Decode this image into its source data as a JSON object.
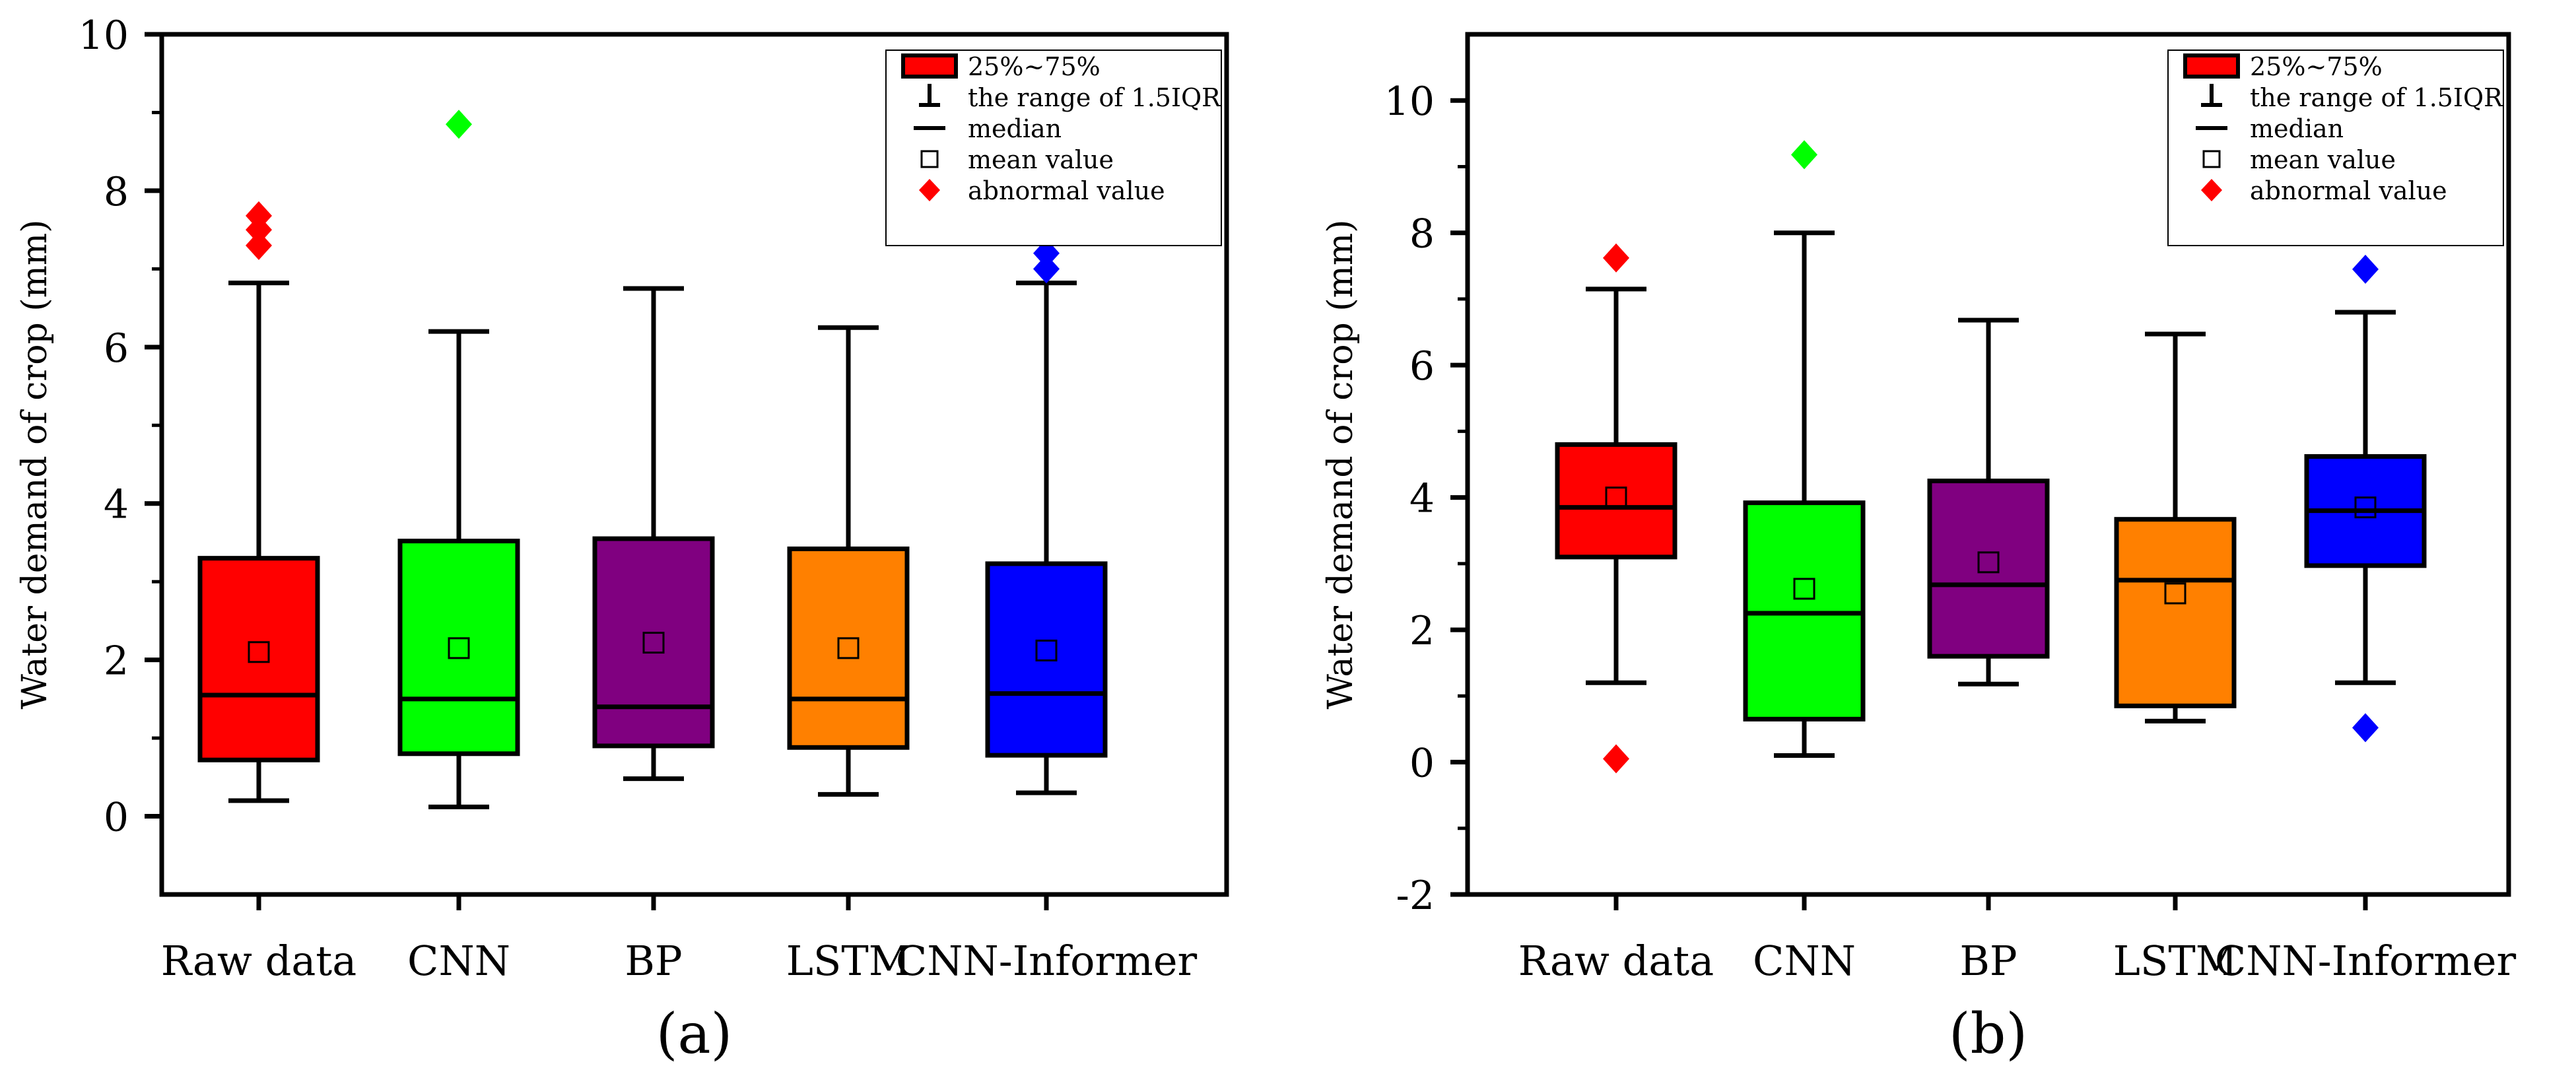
{
  "chart_data": [
    {
      "type": "box",
      "panel_label": "(a)",
      "ylabel": "Water demand of crop (mm)",
      "ylim": [
        -1,
        10
      ],
      "yticks": [
        0,
        2,
        4,
        6,
        8,
        10
      ],
      "categories": [
        "Raw data",
        "CNN",
        "BP",
        "LSTM",
        "CNN-Informer"
      ],
      "boxes": [
        {
          "name": "Raw data",
          "color": "#ff0000",
          "whisker_low": 0.2,
          "q1": 0.72,
          "median": 1.55,
          "q3": 3.3,
          "whisker_high": 6.82,
          "mean": 2.1,
          "outliers": [
            7.3,
            7.5,
            7.68
          ]
        },
        {
          "name": "CNN",
          "color": "#00ff00",
          "whisker_low": 0.12,
          "q1": 0.8,
          "median": 1.5,
          "q3": 3.52,
          "whisker_high": 6.2,
          "mean": 2.15,
          "outliers": [
            8.85
          ]
        },
        {
          "name": "BP",
          "color": "#800080",
          "whisker_low": 0.48,
          "q1": 0.9,
          "median": 1.4,
          "q3": 3.55,
          "whisker_high": 6.75,
          "mean": 2.22,
          "outliers": []
        },
        {
          "name": "LSTM",
          "color": "#ff8000",
          "whisker_low": 0.28,
          "q1": 0.88,
          "median": 1.5,
          "q3": 3.42,
          "whisker_high": 6.25,
          "mean": 2.15,
          "outliers": []
        },
        {
          "name": "CNN-Informer",
          "color": "#0000ff",
          "whisker_low": 0.3,
          "q1": 0.78,
          "median": 1.57,
          "q3": 3.23,
          "whisker_high": 6.82,
          "mean": 2.12,
          "outliers": [
            7.0,
            7.2
          ]
        }
      ],
      "legend": {
        "position": "top-right",
        "entries": [
          "25%~75%",
          "the range of 1.5IQR",
          "median",
          "mean value",
          "abnormal value"
        ]
      }
    },
    {
      "type": "box",
      "panel_label": "(b)",
      "ylabel": "Water demand of crop (mm)",
      "ylim": [
        -2,
        11
      ],
      "yticks": [
        -2,
        0,
        2,
        4,
        6,
        8,
        10
      ],
      "categories": [
        "Raw data",
        "CNN",
        "BP",
        "LSTM",
        "CNN-Informer"
      ],
      "boxes": [
        {
          "name": "Raw data",
          "color": "#ff0000",
          "whisker_low": 1.2,
          "q1": 3.1,
          "median": 3.85,
          "q3": 4.8,
          "whisker_high": 7.15,
          "mean": 4.0,
          "outliers": [
            0.05,
            7.62
          ]
        },
        {
          "name": "CNN",
          "color": "#00ff00",
          "whisker_low": 0.1,
          "q1": 0.65,
          "median": 2.25,
          "q3": 3.92,
          "whisker_high": 8.0,
          "mean": 2.62,
          "outliers": [
            9.18
          ]
        },
        {
          "name": "BP",
          "color": "#800080",
          "whisker_low": 1.18,
          "q1": 1.6,
          "median": 2.68,
          "q3": 4.25,
          "whisker_high": 6.68,
          "mean": 3.02,
          "outliers": []
        },
        {
          "name": "LSTM",
          "color": "#ff8000",
          "whisker_low": 0.62,
          "q1": 0.85,
          "median": 2.75,
          "q3": 3.67,
          "whisker_high": 6.47,
          "mean": 2.55,
          "outliers": []
        },
        {
          "name": "CNN-Informer",
          "color": "#0000ff",
          "whisker_low": 1.2,
          "q1": 2.97,
          "median": 3.8,
          "q3": 4.62,
          "whisker_high": 6.8,
          "mean": 3.85,
          "outliers": [
            0.52,
            7.45
          ]
        }
      ],
      "legend": {
        "position": "top-right",
        "entries": [
          "25%~75%",
          "the range of 1.5IQR",
          "median",
          "mean value",
          "abnormal value"
        ]
      }
    }
  ]
}
